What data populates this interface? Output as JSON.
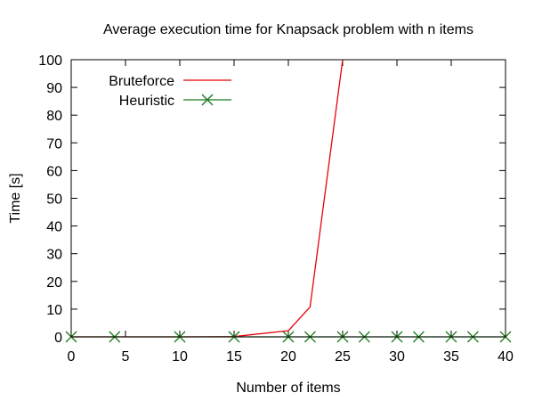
{
  "chart_data": {
    "type": "line",
    "title": "Average execution time for Knapsack problem with n items",
    "xlabel": "Number of items",
    "ylabel": "Time [s]",
    "xlim": [
      0,
      40
    ],
    "ylim": [
      0,
      100
    ],
    "xticks": [
      0,
      5,
      10,
      15,
      20,
      25,
      30,
      35,
      40
    ],
    "yticks": [
      0,
      10,
      20,
      30,
      40,
      50,
      60,
      70,
      80,
      90,
      100
    ],
    "grid": false,
    "legend_position": "top-left",
    "series": [
      {
        "name": "Bruteforce",
        "color": "#e8000b",
        "marker": "none",
        "x": [
          0,
          4,
          10,
          15,
          20,
          22,
          25
        ],
        "y": [
          0,
          0,
          0,
          0.1,
          2.2,
          10.8,
          100
        ]
      },
      {
        "name": "Heuristic",
        "color": "#1a7a1a",
        "marker": "x",
        "x": [
          0,
          4,
          10,
          15,
          20,
          22,
          25,
          27,
          30,
          32,
          35,
          37,
          40
        ],
        "y": [
          0,
          0,
          0,
          0,
          0,
          0,
          0,
          0,
          0,
          0,
          0,
          0,
          0
        ]
      }
    ]
  }
}
